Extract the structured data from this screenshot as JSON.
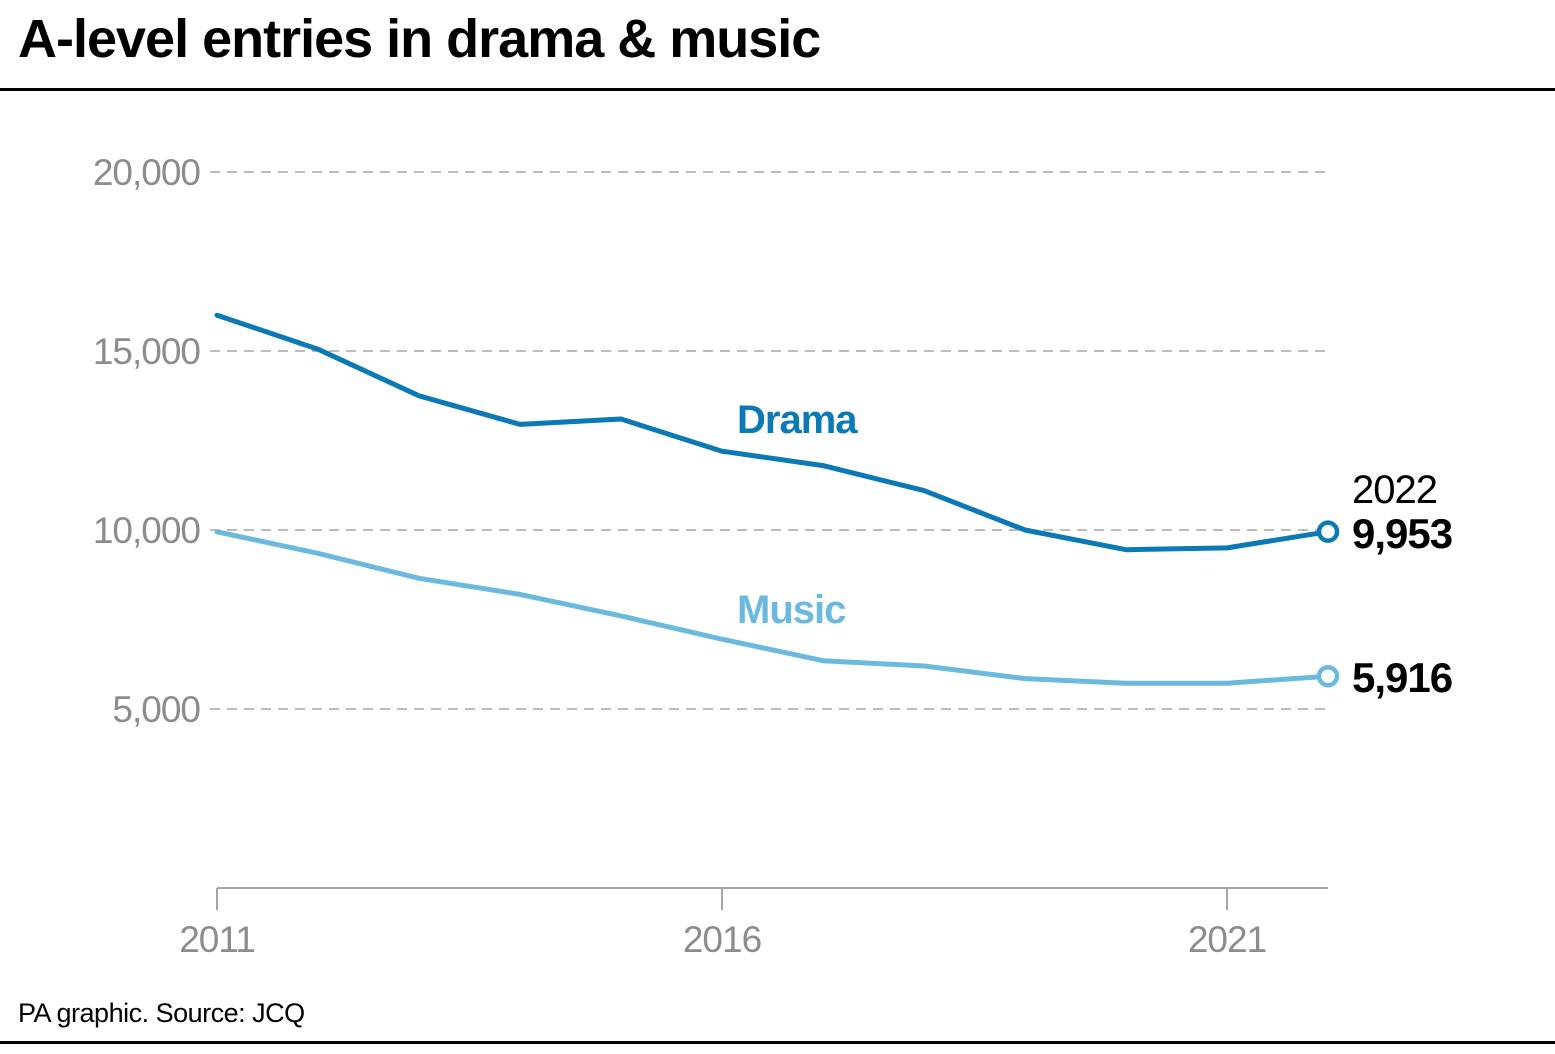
{
  "title": "A-level entries in drama & music",
  "source": "PA graphic. Source: JCQ",
  "colors": {
    "drama": "#0a79b6",
    "music": "#6cb9e0",
    "grid": "#a6a6a6",
    "tick_text": "#8c8c8c",
    "axis": "#a6a6a6",
    "text": "#000000"
  },
  "chart_data": {
    "type": "line",
    "title": "A-level entries in drama & music",
    "xlabel": "",
    "ylabel": "",
    "x": [
      2011,
      2012,
      2013,
      2014,
      2015,
      2016,
      2017,
      2018,
      2019,
      2020,
      2021,
      2022
    ],
    "xlim": [
      2011,
      2022
    ],
    "ylim": [
      0,
      20000
    ],
    "y_ticks": [
      5000,
      10000,
      15000,
      20000
    ],
    "y_tick_labels": [
      "5,000",
      "10,000",
      "15,000",
      "20,000"
    ],
    "x_ticks": [
      2011,
      2016,
      2021
    ],
    "x_tick_labels": [
      "2011",
      "2016",
      "2021"
    ],
    "grid": "horizontal dashed",
    "series": [
      {
        "name": "Drama",
        "values": [
          16000,
          15050,
          13750,
          12950,
          13100,
          12200,
          11800,
          11100,
          10000,
          9450,
          9500,
          9953
        ]
      },
      {
        "name": "Music",
        "values": [
          9950,
          9350,
          8650,
          8200,
          7600,
          6950,
          6350,
          6200,
          5850,
          5720,
          5720,
          5916
        ]
      }
    ],
    "annotations": {
      "end_year": "2022",
      "drama_end": "9,953",
      "music_end": "5,916"
    }
  }
}
